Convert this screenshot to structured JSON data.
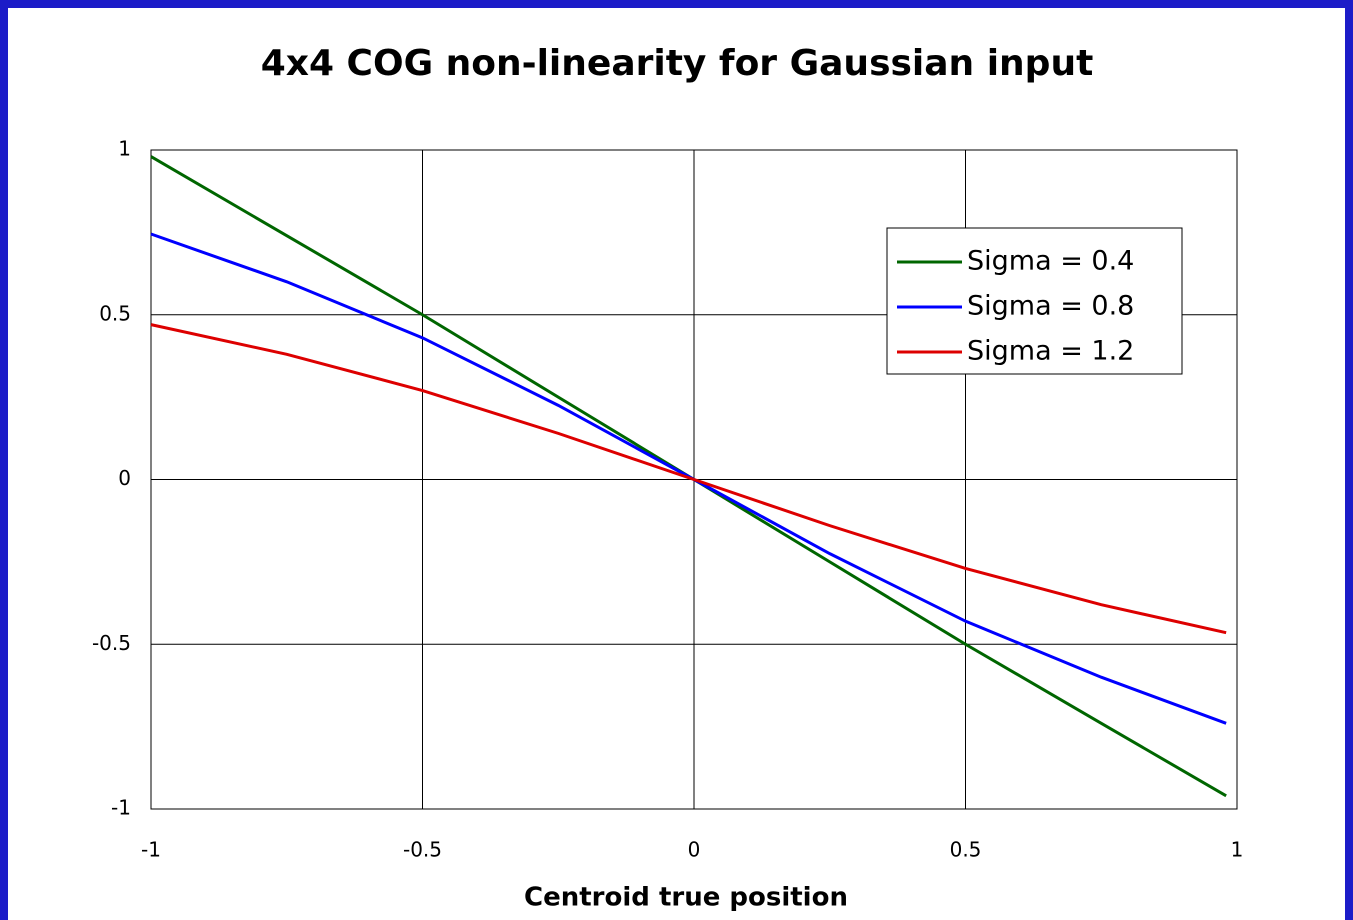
{
  "chart_data": {
    "type": "line",
    "title": "4x4 COG non-linearity for Gaussian input",
    "x_label": "Centroid true position",
    "x": [
      -1,
      -0.75,
      -0.5,
      -0.25,
      0,
      0.25,
      0.5,
      0.75,
      0.98
    ],
    "series": [
      {
        "name": "Sigma = 0.4",
        "color": "#006600",
        "values": [
          0.98,
          0.74,
          0.5,
          0.25,
          0,
          -0.25,
          -0.5,
          -0.74,
          -0.96
        ]
      },
      {
        "name": "Sigma = 0.8",
        "color": "#0000ff",
        "values": [
          0.745,
          0.6,
          0.43,
          0.225,
          0,
          -0.225,
          -0.43,
          -0.6,
          -0.74
        ]
      },
      {
        "name": "Sigma = 1.2",
        "color": "#dd0000",
        "values": [
          0.47,
          0.38,
          0.27,
          0.14,
          0,
          -0.14,
          -0.27,
          -0.38,
          -0.465
        ]
      }
    ],
    "xlim": [
      -1,
      1
    ],
    "xticks": [
      -1,
      -0.5,
      0,
      0.5,
      1
    ],
    "ylim": [
      -1,
      1
    ],
    "yticks": [
      -1,
      -0.5,
      0,
      0.5,
      1
    ],
    "grid": true,
    "legend": "upper right"
  }
}
